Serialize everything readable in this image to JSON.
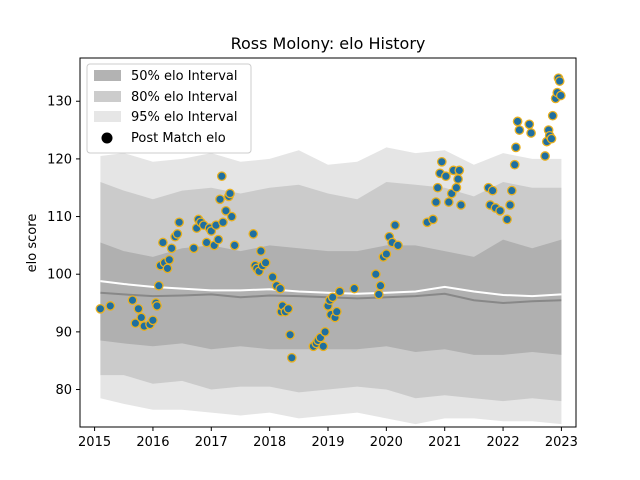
{
  "chart_data": {
    "type": "scatter",
    "title": "Ross Molony: elo History",
    "xlabel": "",
    "ylabel": "elo score",
    "xlim": [
      2014.75,
      2023.25
    ],
    "ylim": [
      73.5,
      137.5
    ],
    "xticks": [
      "2015",
      "2016",
      "2017",
      "2018",
      "2019",
      "2020",
      "2021",
      "2022",
      "2023"
    ],
    "yticks": [
      "80",
      "90",
      "100",
      "110",
      "120",
      "130"
    ],
    "grid": false,
    "legend_position": "top-left",
    "legend": [
      {
        "label": "50% elo Interval",
        "color": "#b3b3b3"
      },
      {
        "label": "80% elo Interval",
        "color": "#cccccc"
      },
      {
        "label": "95% elo Interval",
        "color": "#e6e6e6"
      },
      {
        "label": "Post Match elo",
        "color": "#000000"
      }
    ],
    "colors": {
      "interval_95": "#e5e5e5",
      "interval_80": "#cbcbcb",
      "interval_50": "#b0b0b0",
      "median_line": "#888888",
      "mean_line": "#ffffff",
      "point_fill": "#1f6fa0",
      "point_edge": "#e8b020"
    },
    "bands": {
      "x": [
        2015.1,
        2015.5,
        2016.0,
        2016.5,
        2017.0,
        2017.5,
        2018.0,
        2018.5,
        2019.0,
        2019.5,
        2020.0,
        2020.5,
        2021.0,
        2021.5,
        2022.0,
        2022.5,
        2023.0
      ],
      "p95_hi": [
        120.5,
        121.0,
        119.5,
        120.0,
        121.0,
        119.5,
        120.0,
        121.5,
        119.0,
        119.5,
        122.0,
        121.0,
        121.5,
        119.0,
        121.0,
        120.0,
        120.0
      ],
      "p80_hi": [
        116.0,
        114.5,
        113.0,
        114.5,
        115.0,
        114.0,
        115.0,
        115.5,
        114.0,
        113.0,
        116.0,
        115.5,
        115.0,
        113.5,
        116.0,
        115.0,
        115.0
      ],
      "p50_hi": [
        105.5,
        104.0,
        103.0,
        104.5,
        105.0,
        104.0,
        105.0,
        104.5,
        104.0,
        104.0,
        105.0,
        105.0,
        104.0,
        103.0,
        106.0,
        104.5,
        106.0
      ],
      "median": [
        96.8,
        96.5,
        96.2,
        96.3,
        96.5,
        96.0,
        96.3,
        96.2,
        96.0,
        95.8,
        96.0,
        96.2,
        96.6,
        95.5,
        95.0,
        95.3,
        95.5
      ],
      "mean": [
        98.8,
        98.3,
        97.8,
        97.5,
        97.2,
        97.2,
        97.4,
        97.0,
        96.8,
        96.6,
        96.8,
        97.0,
        97.8,
        97.0,
        96.4,
        96.2,
        96.5
      ],
      "p50_lo": [
        88.5,
        88.0,
        87.5,
        88.0,
        87.0,
        87.5,
        87.0,
        87.0,
        87.0,
        87.0,
        87.5,
        86.5,
        87.0,
        86.0,
        86.0,
        86.5,
        86.0
      ],
      "p80_lo": [
        82.5,
        82.5,
        81.0,
        81.5,
        80.0,
        80.5,
        80.5,
        79.5,
        80.0,
        80.5,
        80.0,
        78.5,
        79.0,
        78.5,
        78.0,
        78.5,
        78.0
      ],
      "p95_lo": [
        78.5,
        77.5,
        76.5,
        76.5,
        76.0,
        75.5,
        76.0,
        75.0,
        75.5,
        76.0,
        75.0,
        74.0,
        75.0,
        75.0,
        74.5,
        74.5,
        74.0
      ]
    },
    "points": [
      {
        "x": 2015.1,
        "y": 94.0
      },
      {
        "x": 2015.27,
        "y": 94.5
      },
      {
        "x": 2015.65,
        "y": 95.5
      },
      {
        "x": 2015.7,
        "y": 91.5
      },
      {
        "x": 2015.75,
        "y": 94.0
      },
      {
        "x": 2015.8,
        "y": 92.5
      },
      {
        "x": 2015.85,
        "y": 91.0
      },
      {
        "x": 2015.95,
        "y": 91.3
      },
      {
        "x": 2016.0,
        "y": 92.0
      },
      {
        "x": 2016.05,
        "y": 95.0
      },
      {
        "x": 2016.07,
        "y": 94.5
      },
      {
        "x": 2016.1,
        "y": 98.0
      },
      {
        "x": 2016.13,
        "y": 101.5
      },
      {
        "x": 2016.17,
        "y": 105.5
      },
      {
        "x": 2016.2,
        "y": 102.0
      },
      {
        "x": 2016.25,
        "y": 101.0
      },
      {
        "x": 2016.28,
        "y": 102.5
      },
      {
        "x": 2016.32,
        "y": 104.5
      },
      {
        "x": 2016.38,
        "y": 106.5
      },
      {
        "x": 2016.42,
        "y": 107.0
      },
      {
        "x": 2016.45,
        "y": 109.0
      },
      {
        "x": 2016.7,
        "y": 104.5
      },
      {
        "x": 2016.75,
        "y": 108.0
      },
      {
        "x": 2016.78,
        "y": 109.5
      },
      {
        "x": 2016.82,
        "y": 109.0
      },
      {
        "x": 2016.87,
        "y": 108.5
      },
      {
        "x": 2016.92,
        "y": 105.5
      },
      {
        "x": 2016.97,
        "y": 108.0
      },
      {
        "x": 2017.0,
        "y": 107.5
      },
      {
        "x": 2017.05,
        "y": 105.0
      },
      {
        "x": 2017.08,
        "y": 108.5
      },
      {
        "x": 2017.12,
        "y": 106.0
      },
      {
        "x": 2017.15,
        "y": 113.0
      },
      {
        "x": 2017.18,
        "y": 117.0
      },
      {
        "x": 2017.2,
        "y": 109.0
      },
      {
        "x": 2017.25,
        "y": 111.0
      },
      {
        "x": 2017.3,
        "y": 113.5
      },
      {
        "x": 2017.32,
        "y": 114.0
      },
      {
        "x": 2017.35,
        "y": 110.0
      },
      {
        "x": 2017.4,
        "y": 105.0
      },
      {
        "x": 2017.72,
        "y": 107.0
      },
      {
        "x": 2017.75,
        "y": 101.5
      },
      {
        "x": 2017.78,
        "y": 101.0
      },
      {
        "x": 2017.82,
        "y": 100.5
      },
      {
        "x": 2017.85,
        "y": 104.0
      },
      {
        "x": 2017.88,
        "y": 101.5
      },
      {
        "x": 2017.93,
        "y": 102.0
      },
      {
        "x": 2018.05,
        "y": 99.5
      },
      {
        "x": 2018.12,
        "y": 98.0
      },
      {
        "x": 2018.18,
        "y": 97.5
      },
      {
        "x": 2018.2,
        "y": 93.5
      },
      {
        "x": 2018.22,
        "y": 94.5
      },
      {
        "x": 2018.27,
        "y": 93.5
      },
      {
        "x": 2018.32,
        "y": 94.0
      },
      {
        "x": 2018.35,
        "y": 89.5
      },
      {
        "x": 2018.38,
        "y": 85.5
      },
      {
        "x": 2018.75,
        "y": 87.5
      },
      {
        "x": 2018.8,
        "y": 88.0
      },
      {
        "x": 2018.83,
        "y": 88.5
      },
      {
        "x": 2018.87,
        "y": 89.0
      },
      {
        "x": 2018.92,
        "y": 87.5
      },
      {
        "x": 2018.95,
        "y": 90.0
      },
      {
        "x": 2019.0,
        "y": 94.5
      },
      {
        "x": 2019.03,
        "y": 95.5
      },
      {
        "x": 2019.05,
        "y": 93.0
      },
      {
        "x": 2019.08,
        "y": 96.0
      },
      {
        "x": 2019.12,
        "y": 92.5
      },
      {
        "x": 2019.15,
        "y": 93.5
      },
      {
        "x": 2019.2,
        "y": 97.0
      },
      {
        "x": 2019.45,
        "y": 97.5
      },
      {
        "x": 2019.82,
        "y": 100.0
      },
      {
        "x": 2019.87,
        "y": 96.5
      },
      {
        "x": 2019.9,
        "y": 98.0
      },
      {
        "x": 2019.95,
        "y": 103.0
      },
      {
        "x": 2020.0,
        "y": 103.5
      },
      {
        "x": 2020.05,
        "y": 106.5
      },
      {
        "x": 2020.1,
        "y": 105.5
      },
      {
        "x": 2020.15,
        "y": 108.5
      },
      {
        "x": 2020.2,
        "y": 105.0
      },
      {
        "x": 2020.7,
        "y": 109.0
      },
      {
        "x": 2020.8,
        "y": 109.5
      },
      {
        "x": 2020.85,
        "y": 112.5
      },
      {
        "x": 2020.88,
        "y": 115.0
      },
      {
        "x": 2020.92,
        "y": 117.5
      },
      {
        "x": 2020.95,
        "y": 119.5
      },
      {
        "x": 2021.02,
        "y": 117.0
      },
      {
        "x": 2021.07,
        "y": 112.5
      },
      {
        "x": 2021.12,
        "y": 114.0
      },
      {
        "x": 2021.15,
        "y": 118.0
      },
      {
        "x": 2021.2,
        "y": 115.0
      },
      {
        "x": 2021.23,
        "y": 116.5
      },
      {
        "x": 2021.25,
        "y": 118.0
      },
      {
        "x": 2021.28,
        "y": 112.0
      },
      {
        "x": 2021.75,
        "y": 115.0
      },
      {
        "x": 2021.78,
        "y": 112.0
      },
      {
        "x": 2021.82,
        "y": 114.5
      },
      {
        "x": 2021.87,
        "y": 111.5
      },
      {
        "x": 2021.95,
        "y": 111.0
      },
      {
        "x": 2022.07,
        "y": 109.5
      },
      {
        "x": 2022.12,
        "y": 112.0
      },
      {
        "x": 2022.15,
        "y": 114.5
      },
      {
        "x": 2022.2,
        "y": 119.0
      },
      {
        "x": 2022.22,
        "y": 122.0
      },
      {
        "x": 2022.25,
        "y": 126.5
      },
      {
        "x": 2022.28,
        "y": 125.0
      },
      {
        "x": 2022.45,
        "y": 126.0
      },
      {
        "x": 2022.48,
        "y": 124.5
      },
      {
        "x": 2022.72,
        "y": 120.5
      },
      {
        "x": 2022.75,
        "y": 123.0
      },
      {
        "x": 2022.78,
        "y": 125.0
      },
      {
        "x": 2022.8,
        "y": 124.0
      },
      {
        "x": 2022.83,
        "y": 123.5
      },
      {
        "x": 2022.85,
        "y": 127.5
      },
      {
        "x": 2022.9,
        "y": 130.5
      },
      {
        "x": 2022.93,
        "y": 131.5
      },
      {
        "x": 2022.95,
        "y": 134.0
      },
      {
        "x": 2022.97,
        "y": 133.5
      },
      {
        "x": 2022.99,
        "y": 131.0
      }
    ]
  }
}
